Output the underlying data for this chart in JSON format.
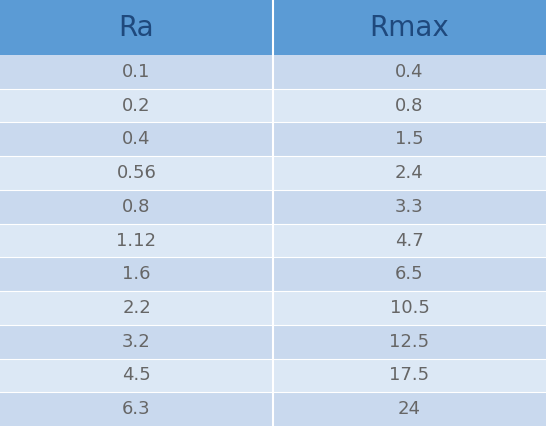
{
  "headers": [
    "Ra",
    "Rmax"
  ],
  "rows": [
    [
      "0.1",
      "0.4"
    ],
    [
      "0.2",
      "0.8"
    ],
    [
      "0.4",
      "1.5"
    ],
    [
      "0.56",
      "2.4"
    ],
    [
      "0.8",
      "3.3"
    ],
    [
      "1.12",
      "4.7"
    ],
    [
      "1.6",
      "6.5"
    ],
    [
      "2.2",
      "10.5"
    ],
    [
      "3.2",
      "12.5"
    ],
    [
      "4.5",
      "17.5"
    ],
    [
      "6.3",
      "24"
    ]
  ],
  "header_bg_color": "#5B9BD5",
  "header_text_color": "#1F497D",
  "row_colors_even": "#C9D9EE",
  "row_colors_odd": "#DCE8F5",
  "cell_text_color": "#666666",
  "header_fontsize": 20,
  "cell_fontsize": 13,
  "fig_width": 5.46,
  "fig_height": 4.26,
  "fig_bg_color": "#ffffff",
  "col_divider_color": "#ffffff",
  "row_divider_color": "#ffffff"
}
